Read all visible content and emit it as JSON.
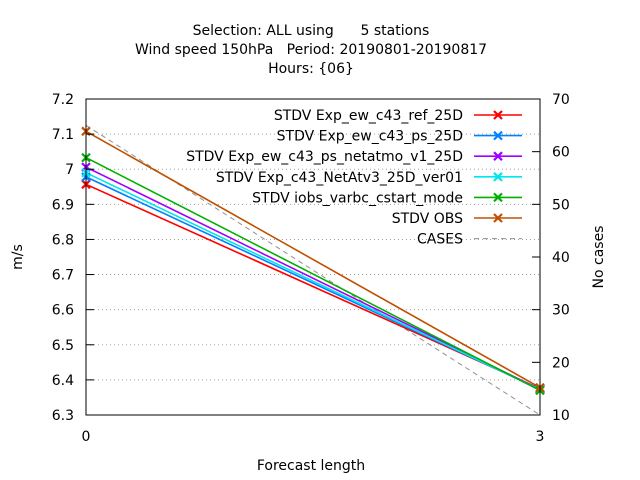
{
  "chart_data": {
    "type": "line",
    "title_lines": [
      "Selection: ALL using      5 stations",
      "Wind speed 150hPa   Period: 20190801-20190817",
      "Hours: {06}"
    ],
    "xlabel": "Forecast length",
    "ylabel": "m/s",
    "y2label": "No cases",
    "x": [
      0,
      3
    ],
    "x_ticks": [
      0,
      3
    ],
    "xlim": [
      0,
      3
    ],
    "ylim": [
      6.3,
      7.2
    ],
    "y_ticks": [
      6.3,
      6.4,
      6.5,
      6.6,
      6.7,
      6.8,
      6.9,
      7,
      7.1,
      7.2
    ],
    "y2lim": [
      10,
      70
    ],
    "y2_ticks": [
      10,
      20,
      30,
      40,
      50,
      60,
      70
    ],
    "grid": true,
    "legend_position": "top-right",
    "series": [
      {
        "name": "STDV Exp_ew_c43_ref_25D",
        "color": "#ff0000",
        "values": [
          6.957,
          6.375
        ],
        "marker": "x"
      },
      {
        "name": "STDV Exp_ew_c43_ps_25D",
        "color": "#0080ff",
        "values": [
          6.978,
          6.373
        ],
        "marker": "x"
      },
      {
        "name": "STDV Exp_ew_c43_ps_netatmo_v1_25D",
        "color": "#a000ff",
        "values": [
          7.006,
          6.373
        ],
        "marker": "x"
      },
      {
        "name": "STDV Exp_c43_NetAtv3_25D_ver01",
        "color": "#00e5ee",
        "values": [
          6.99,
          6.372
        ],
        "marker": "x"
      },
      {
        "name": "STDV iobs_varbc_cstart_mode",
        "color": "#00b000",
        "values": [
          7.033,
          6.37
        ],
        "marker": "x"
      },
      {
        "name": "STDV OBS",
        "color": "#c05000",
        "values": [
          7.108,
          6.378
        ],
        "marker": "x"
      },
      {
        "name": "CASES",
        "color": "#909090",
        "values": [
          65,
          10
        ],
        "axis": "y2",
        "dashed": true
      }
    ]
  }
}
